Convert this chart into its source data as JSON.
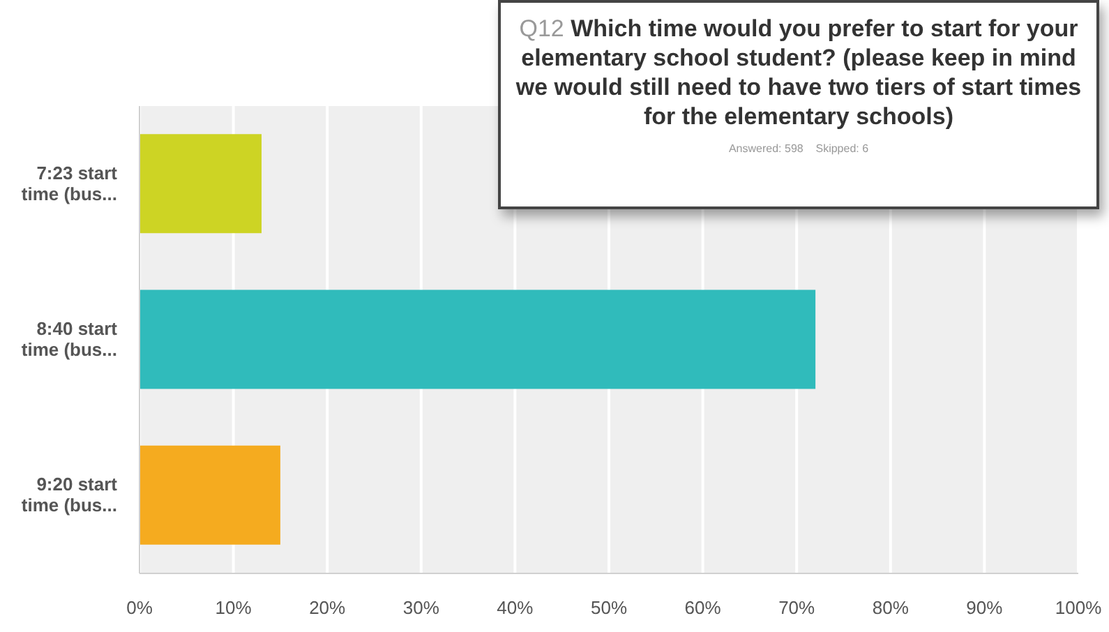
{
  "chart_data": {
    "type": "bar",
    "orientation": "horizontal",
    "title": "Q12 Which time would you prefer to start for your elementary school student? (please keep in mind we would still need to have two tiers of start times for the elementary schools)",
    "subtitle": "Answered: 598    Skipped: 6",
    "categories": [
      "7:23 start time (bus...",
      "8:40 start time (bus...",
      "9:20 start time (bus..."
    ],
    "values": [
      13,
      72,
      15
    ],
    "colors": [
      "#cdd424",
      "#30bbbb",
      "#f5ab1f"
    ],
    "xlim": [
      0,
      100
    ],
    "xticks": [
      {
        "value": 0,
        "label": "0%"
      },
      {
        "value": 10,
        "label": "10%"
      },
      {
        "value": 20,
        "label": "20%"
      },
      {
        "value": 30,
        "label": "30%"
      },
      {
        "value": 40,
        "label": "40%"
      },
      {
        "value": 50,
        "label": "50%"
      },
      {
        "value": 60,
        "label": "60%"
      },
      {
        "value": 70,
        "label": "70%"
      },
      {
        "value": 80,
        "label": "80%"
      },
      {
        "value": 90,
        "label": "90%"
      },
      {
        "value": 100,
        "label": "100%"
      }
    ],
    "grid": "x",
    "legend": false
  }
}
